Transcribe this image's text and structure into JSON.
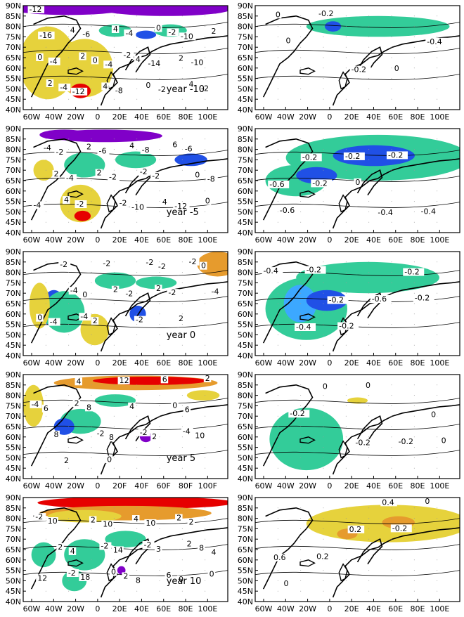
{
  "x_ticks": [
    "60W",
    "40W",
    "20W",
    "0",
    "20E",
    "40E",
    "60E",
    "80E",
    "100E"
  ],
  "x_ticks_alt": [
    "60W",
    "40W",
    "20W",
    "0",
    "20F",
    "40F",
    "60F",
    "80F",
    "100F"
  ],
  "y_ticks": [
    "90N",
    "85N",
    "80N",
    "75N",
    "70N",
    "65N",
    "60N",
    "55N",
    "50N",
    "45N",
    "40N"
  ],
  "colors": {
    "purple": "#8000c8",
    "blue": "#2050e6",
    "lightblue": "#3ca8ff",
    "green": "#33cc99",
    "yellow": "#e6d23c",
    "orange": "#e69b2d",
    "red": "#e60000"
  },
  "rows": [
    {
      "lag_label": "year -10",
      "left_labels": [
        "-12",
        "-4",
        "-10",
        "-12",
        "-14",
        "-16",
        "-8",
        "-10",
        "-6",
        "-2",
        "-4",
        "-4",
        "-2",
        "0",
        "-2",
        "-4",
        "4",
        "2",
        "4",
        "2",
        "4",
        "0",
        "0",
        "4",
        "4",
        "2",
        "0",
        "2",
        "-2"
      ],
      "right_labels": [
        "0",
        "-0.2",
        "-0.4",
        "-0.2",
        "0",
        "0"
      ]
    },
    {
      "lag_label": "year -5",
      "left_labels": [
        "-2",
        "-10",
        "-8",
        "-6",
        "-12",
        "-4",
        "-8",
        "-4",
        "-2",
        "-6",
        "-2",
        "-2",
        "-4",
        "-2",
        "0",
        "2",
        "4",
        "2",
        "4",
        "0",
        "2",
        "6",
        "4",
        "-2"
      ],
      "right_labels": [
        "-0.2",
        "-0.4",
        "-0.6",
        "-0.2",
        "-0.4",
        "-0.2",
        "-0.2",
        "-0.6",
        "0"
      ]
    },
    {
      "lag_label": "year 0",
      "left_labels": [
        "0",
        "-2",
        "-4",
        "-2",
        "0",
        "2",
        "-2",
        "-2",
        "-2",
        "-4",
        "-2",
        "2",
        "-4",
        "-2",
        "0",
        "2",
        "-2",
        "-4",
        "2"
      ],
      "right_labels": [
        "-0.2",
        "-0.2",
        "-0.4",
        "-0.6",
        "-0.4",
        "-0.2",
        "-0.2",
        "-0.2"
      ]
    },
    {
      "lag_label": "year 5",
      "left_labels": [
        "8",
        "6",
        "4",
        "2",
        "6",
        "12",
        "10",
        "8",
        "6",
        "8",
        "4",
        "2",
        "-2",
        "0",
        "2",
        "-2",
        "-4",
        "0",
        "-4",
        "2"
      ],
      "right_labels": [
        "-0.2",
        "0",
        "0",
        "-0.2",
        "-0.2",
        "0",
        "0"
      ]
    },
    {
      "lag_label": "year 10",
      "left_labels": [
        "8",
        "4",
        "10",
        "0",
        "4",
        "10",
        "12",
        "14",
        "2",
        "18",
        "3",
        "10",
        "2",
        "8",
        "2",
        "6",
        "2",
        "4",
        "0",
        "-2",
        "2",
        "-2",
        "-2",
        "-2",
        "0",
        "2"
      ],
      "right_labels": [
        "0.4",
        "0.6",
        "0.2",
        "0",
        "0.2",
        "-0.2",
        "0"
      ]
    }
  ]
}
